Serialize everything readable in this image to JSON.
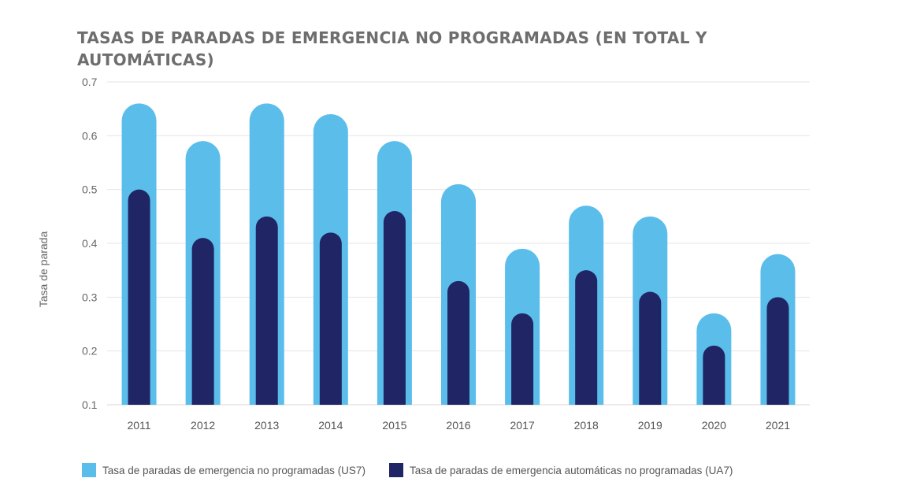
{
  "chart_data": {
    "type": "bar",
    "title": "TASAS DE PARADAS DE EMERGENCIA NO PROGRAMADAS (EN TOTAL Y AUTOMÁTICAS)",
    "ylabel": "Tasa de parada",
    "xlabel": "",
    "ylim": [
      0.1,
      0.7
    ],
    "yticks": [
      "0.1",
      "0.2",
      "0.3",
      "0.4",
      "0.5",
      "0.6",
      "0.7"
    ],
    "categories": [
      "2011",
      "2012",
      "2013",
      "2014",
      "2015",
      "2016",
      "2017",
      "2018",
      "2019",
      "2020",
      "2021"
    ],
    "series": [
      {
        "name": "Tasa de paradas de emergencia no programadas (US7)",
        "color": "#5bbdea",
        "values": [
          0.66,
          0.59,
          0.66,
          0.64,
          0.59,
          0.51,
          0.39,
          0.47,
          0.45,
          0.27,
          0.38
        ]
      },
      {
        "name": "Tasa de paradas de emergencia automáticas no programadas (UA7)",
        "color": "#1f2565",
        "values": [
          0.5,
          0.41,
          0.45,
          0.42,
          0.46,
          0.33,
          0.27,
          0.35,
          0.31,
          0.21,
          0.3
        ]
      }
    ],
    "grid": true,
    "legend_position": "bottom"
  }
}
